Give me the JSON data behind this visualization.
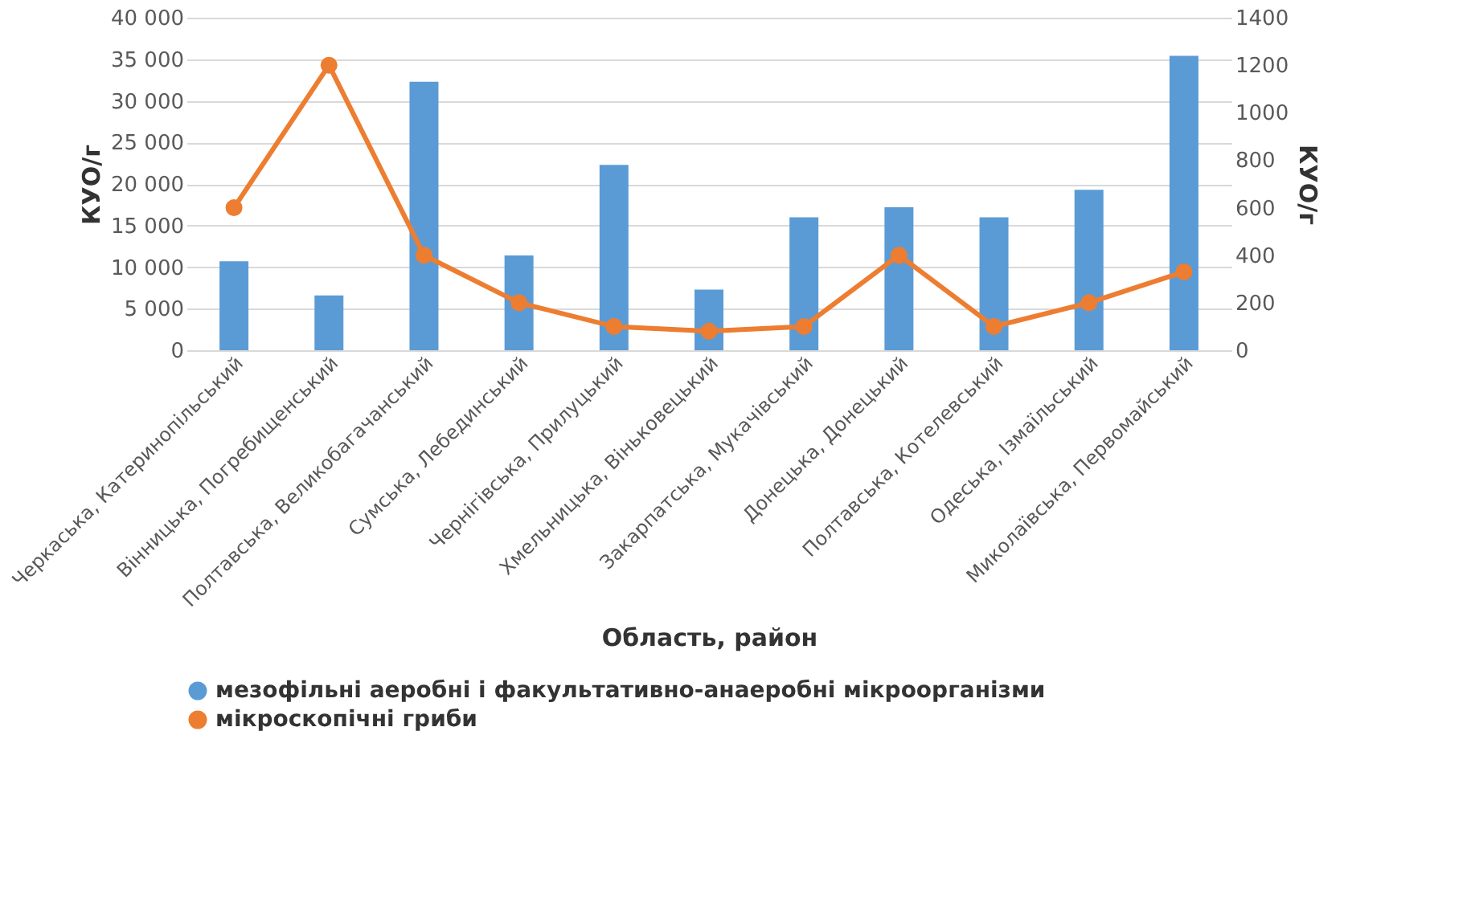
{
  "chart_data": {
    "type": "bar",
    "xlabel": "Область, район",
    "ylabel": "КУО/г",
    "y2label": "КУО/г",
    "categories": [
      "Черкаська, Катеринопільський",
      "Вінницька, Погребищенський",
      "Полтавська, Великобагачанський",
      "Сумська, Лебединський",
      "Чернігівська, Прилуцький",
      "Хмельницька, Віньковецький",
      "Закарпатська, Мукачівський",
      "Донецька, Донецький",
      "Полтавська, Котелевський",
      "Одеська, Ізмаїльський",
      "Миколаївська, Первомайський"
    ],
    "series": [
      {
        "name": "мезофільні аеробні і факультативно-анаеробні мікроорганізми",
        "color": "#5b9bd5",
        "values": [
          10700,
          6600,
          32300,
          11400,
          22300,
          7300,
          16000,
          17200,
          16000,
          19300,
          35400
        ]
      },
      {
        "name": "мікроскопічні гриби",
        "color": "#ed7d31",
        "type": "line",
        "axis": "y2",
        "marker": "circle",
        "values": [
          600,
          1200,
          400,
          200,
          100,
          80,
          100,
          400,
          100,
          200,
          330
        ]
      }
    ],
    "ylim": [
      0,
      40000
    ],
    "yticks": [
      0,
      {
        "value": 5000,
        "label": "5 000"
      },
      {
        "value": 10000,
        "label": "10 000"
      },
      {
        "value": 15000,
        "label": "15 000"
      },
      {
        "value": 20000,
        "label": "20 000"
      },
      {
        "value": 25000,
        "label": "25 000"
      },
      {
        "value": 30000,
        "label": "30 000"
      },
      {
        "value": 35000,
        "label": "35 000"
      },
      {
        "value": 40000,
        "label": "40 000"
      }
    ],
    "y2lim": [
      0,
      1400
    ],
    "y2ticks": [
      0,
      200,
      400,
      600,
      800,
      1000,
      1200,
      1400
    ],
    "grid": "y",
    "legend": "bottom"
  }
}
